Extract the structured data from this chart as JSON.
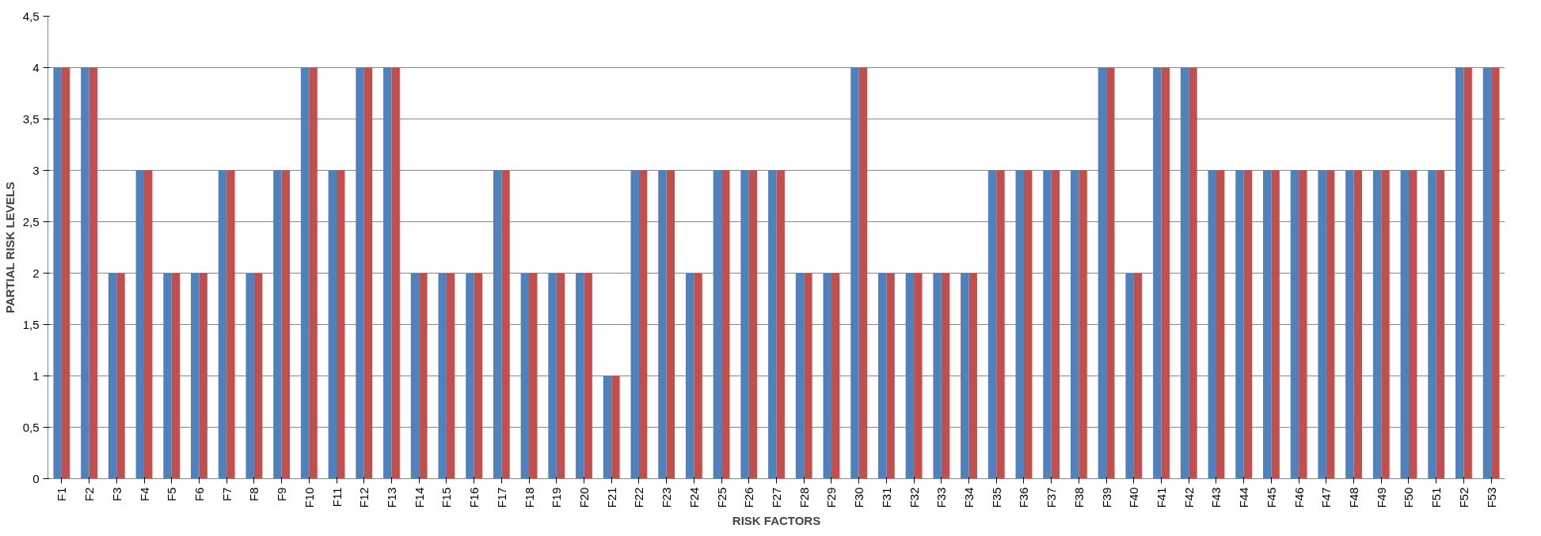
{
  "chart_data": {
    "type": "bar",
    "xlabel": "RISK FACTORS",
    "ylabel": "PARTIAL RISK LEVELS",
    "categories": [
      "F1",
      "F2",
      "F3",
      "F4",
      "F5",
      "F6",
      "F7",
      "F8",
      "F9",
      "F10",
      "F11",
      "F12",
      "F13",
      "F14",
      "F15",
      "F16",
      "F17",
      "F18",
      "F19",
      "F20",
      "F21",
      "F22",
      "F23",
      "F24",
      "F25",
      "F26",
      "F27",
      "F28",
      "F29",
      "F30",
      "F31",
      "F32",
      "F33",
      "F34",
      "F35",
      "F36",
      "F37",
      "F38",
      "F39",
      "F40",
      "F41",
      "F42",
      "F43",
      "F44",
      "F45",
      "F46",
      "F47",
      "F48",
      "F49",
      "F50",
      "F51",
      "F52",
      "F53"
    ],
    "series": [
      {
        "color": "#4f81bd",
        "values": [
          4,
          4,
          2,
          3,
          2,
          2,
          3,
          2,
          3,
          4,
          3,
          4,
          4,
          2,
          2,
          2,
          3,
          2,
          2,
          2,
          1,
          3,
          3,
          2,
          3,
          3,
          3,
          2,
          2,
          4,
          2,
          2,
          2,
          2,
          3,
          3,
          3,
          3,
          4,
          2,
          4,
          4,
          3,
          3,
          3,
          3,
          3,
          3,
          3,
          3,
          3,
          4,
          4
        ]
      },
      {
        "color": "#c0504d",
        "values": [
          4,
          4,
          2,
          3,
          2,
          2,
          3,
          2,
          3,
          4,
          3,
          4,
          4,
          2,
          2,
          2,
          3,
          2,
          2,
          2,
          1,
          3,
          3,
          2,
          3,
          3,
          3,
          2,
          2,
          4,
          2,
          2,
          2,
          2,
          3,
          3,
          3,
          3,
          4,
          2,
          4,
          4,
          3,
          3,
          3,
          3,
          3,
          3,
          3,
          3,
          3,
          4,
          4
        ]
      }
    ],
    "ylim": [
      0,
      4.5
    ],
    "yticks": [
      0,
      {
        "value": 0.5,
        "label": "0,5"
      },
      1,
      {
        "value": 1.5,
        "label": "1,5"
      },
      2,
      {
        "value": 2.5,
        "label": "2,5"
      },
      3,
      {
        "value": 3.5,
        "label": "3,5"
      },
      4,
      {
        "value": 4.5,
        "label": "4,5"
      }
    ],
    "grid": "y"
  }
}
